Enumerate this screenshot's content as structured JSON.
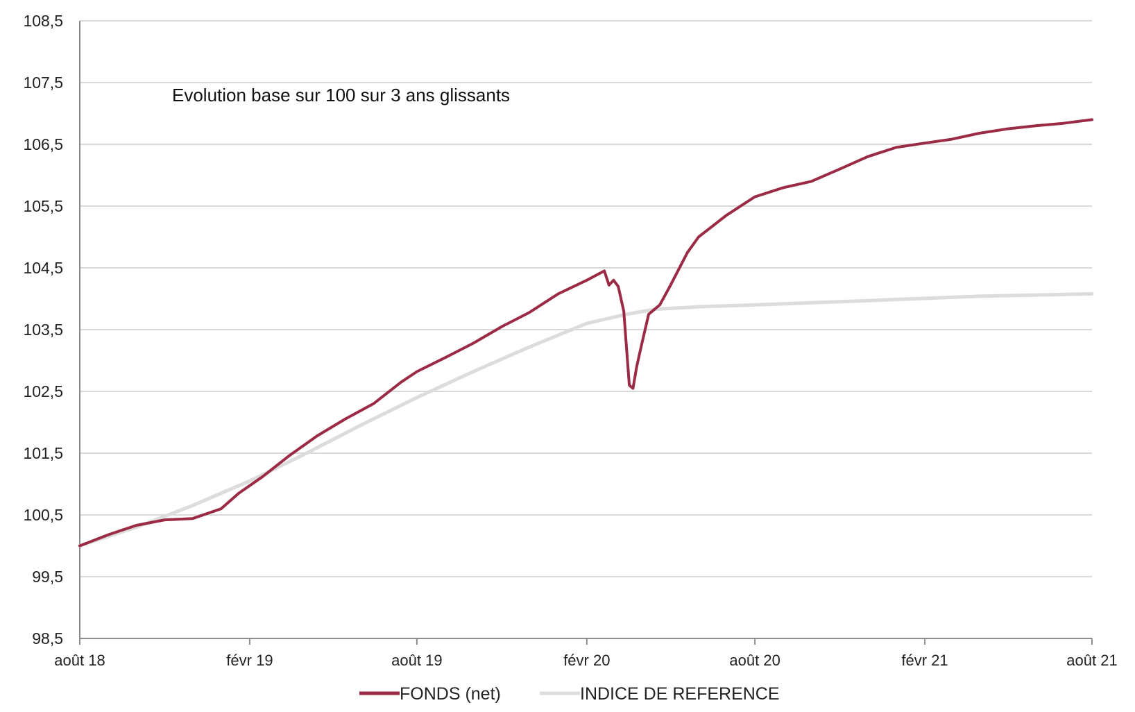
{
  "chart_data": {
    "type": "line",
    "title": "Evolution base sur 100 sur 3 ans glissants",
    "xlabel": "",
    "ylabel": "",
    "ylim": [
      98.5,
      108.5
    ],
    "x_range": [
      "2018-08-01",
      "2021-08-01"
    ],
    "y_ticks": [
      "108,5",
      "107,5",
      "106,5",
      "105,5",
      "104,5",
      "103,5",
      "102,5",
      "101,5",
      "100,5",
      "99,5",
      "98,5"
    ],
    "y_tick_values": [
      108.5,
      107.5,
      106.5,
      105.5,
      104.5,
      103.5,
      102.5,
      101.5,
      100.5,
      99.5,
      98.5
    ],
    "x_ticks": [
      "août 18",
      "févr 19",
      "août 19",
      "févr 20",
      "août 20",
      "févr 21",
      "août 21"
    ],
    "x_tick_dates": [
      "2018-08-01",
      "2019-02-01",
      "2019-08-01",
      "2020-02-01",
      "2020-08-01",
      "2021-02-01",
      "2021-08-01"
    ],
    "grid": "horizontal",
    "legend_position": "bottom",
    "series": [
      {
        "name": "FONDS (net)",
        "color": "#9b2a44",
        "points": [
          [
            "2018-08-01",
            100.0
          ],
          [
            "2018-09-01",
            100.18
          ],
          [
            "2018-10-01",
            100.33
          ],
          [
            "2018-11-01",
            100.42
          ],
          [
            "2018-12-01",
            100.44
          ],
          [
            "2019-01-01",
            100.6
          ],
          [
            "2019-01-20",
            100.85
          ],
          [
            "2019-02-15",
            101.12
          ],
          [
            "2019-03-15",
            101.45
          ],
          [
            "2019-04-15",
            101.78
          ],
          [
            "2019-05-15",
            102.05
          ],
          [
            "2019-06-15",
            102.3
          ],
          [
            "2019-07-15",
            102.65
          ],
          [
            "2019-08-01",
            102.82
          ],
          [
            "2019-09-01",
            103.05
          ],
          [
            "2019-10-01",
            103.28
          ],
          [
            "2019-11-01",
            103.55
          ],
          [
            "2019-12-01",
            103.78
          ],
          [
            "2020-01-01",
            104.08
          ],
          [
            "2020-02-01",
            104.3
          ],
          [
            "2020-02-20",
            104.45
          ],
          [
            "2020-02-25",
            104.22
          ],
          [
            "2020-03-01",
            104.3
          ],
          [
            "2020-03-06",
            104.2
          ],
          [
            "2020-03-12",
            103.8
          ],
          [
            "2020-03-18",
            102.6
          ],
          [
            "2020-03-22",
            102.55
          ],
          [
            "2020-03-26",
            102.9
          ],
          [
            "2020-04-01",
            103.3
          ],
          [
            "2020-04-08",
            103.75
          ],
          [
            "2020-04-20",
            103.9
          ],
          [
            "2020-05-01",
            104.2
          ],
          [
            "2020-05-20",
            104.75
          ],
          [
            "2020-06-01",
            105.0
          ],
          [
            "2020-07-01",
            105.35
          ],
          [
            "2020-08-01",
            105.65
          ],
          [
            "2020-09-01",
            105.8
          ],
          [
            "2020-10-01",
            105.9
          ],
          [
            "2020-11-01",
            106.1
          ],
          [
            "2020-12-01",
            106.3
          ],
          [
            "2021-01-01",
            106.45
          ],
          [
            "2021-02-01",
            106.52
          ],
          [
            "2021-03-01",
            106.58
          ],
          [
            "2021-04-01",
            106.68
          ],
          [
            "2021-05-01",
            106.75
          ],
          [
            "2021-06-01",
            106.8
          ],
          [
            "2021-07-01",
            106.84
          ],
          [
            "2021-08-01",
            106.9
          ]
        ]
      },
      {
        "name": "INDICE DE REFERENCE",
        "color": "#dcdcdc",
        "points": [
          [
            "2018-08-01",
            100.0
          ],
          [
            "2018-10-01",
            100.3
          ],
          [
            "2018-12-01",
            100.65
          ],
          [
            "2019-02-01",
            101.05
          ],
          [
            "2019-04-01",
            101.48
          ],
          [
            "2019-06-01",
            101.95
          ],
          [
            "2019-08-01",
            102.4
          ],
          [
            "2019-10-01",
            102.82
          ],
          [
            "2019-12-01",
            103.22
          ],
          [
            "2020-02-01",
            103.6
          ],
          [
            "2020-03-15",
            103.75
          ],
          [
            "2020-04-15",
            103.83
          ],
          [
            "2020-06-01",
            103.87
          ],
          [
            "2020-08-01",
            103.9
          ],
          [
            "2020-12-01",
            103.97
          ],
          [
            "2021-04-01",
            104.04
          ],
          [
            "2021-08-01",
            104.08
          ]
        ]
      }
    ]
  }
}
